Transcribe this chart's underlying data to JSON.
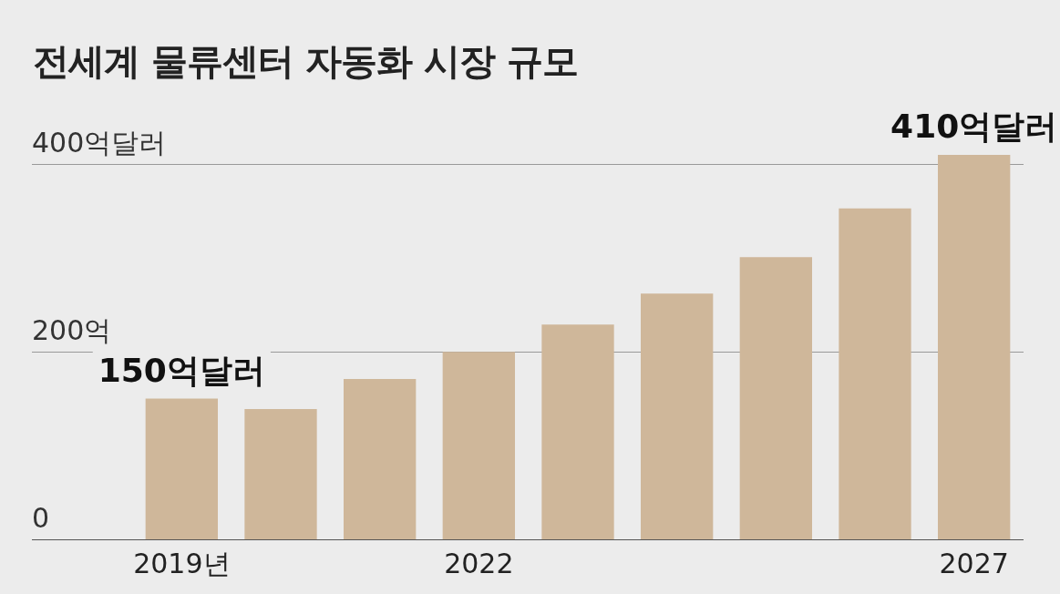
{
  "chart_data": {
    "type": "bar",
    "title": "전세계 물류센터 자동화 시장 규모",
    "categories": [
      "2019년",
      null,
      null,
      "2022",
      null,
      null,
      null,
      null,
      "2027"
    ],
    "values": [
      150,
      139,
      171,
      200,
      229,
      262,
      301,
      353,
      410
    ],
    "value_labels": [
      "150억달러",
      null,
      null,
      null,
      null,
      null,
      null,
      null,
      "410억달러"
    ],
    "color": "#cfb79a",
    "ylim": [
      0,
      410
    ],
    "yticks": [
      {
        "value": 0,
        "label": "0"
      },
      {
        "value": 200,
        "label": "200억"
      },
      {
        "value": 400,
        "label": "400억달러"
      }
    ],
    "grid": "y",
    "legend": false
  }
}
